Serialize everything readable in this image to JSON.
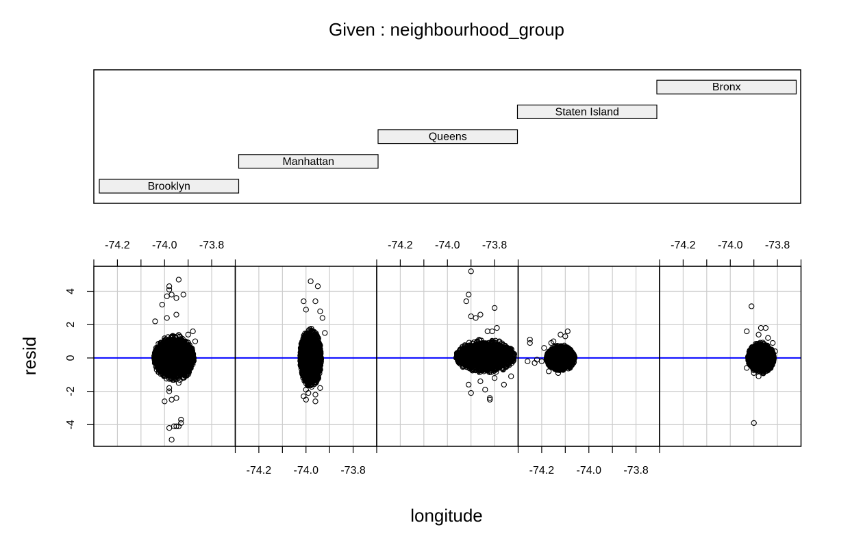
{
  "chart_data": {
    "type": "scatter",
    "title": "Given : neighbourhood_group",
    "xlabel": "longitude",
    "ylabel": "resid",
    "xlim": [
      -74.3,
      -73.7
    ],
    "ylim": [
      -5.3,
      5.5
    ],
    "x_ticks": [
      -74.2,
      -74.0,
      -73.8
    ],
    "y_ticks": [
      -4,
      -2,
      0,
      2,
      4
    ],
    "grid": true,
    "reference_line": {
      "y": 0,
      "color": "#0000ff"
    },
    "given_groups": [
      {
        "name": "Brooklyn"
      },
      {
        "name": "Manhattan"
      },
      {
        "name": "Queens"
      },
      {
        "name": "Staten Island"
      },
      {
        "name": "Bronx"
      }
    ],
    "panels": [
      {
        "group": "Brooklyn",
        "cloud": {
          "x_range": [
            -74.03,
            -73.86
          ],
          "y_range": [
            -1.3,
            1.6
          ],
          "x_center": -73.96,
          "y_center": 0
        },
        "points": [
          [
            -74.04,
            2.2
          ],
          [
            -74.01,
            3.2
          ],
          [
            -73.99,
            3.7
          ],
          [
            -73.98,
            4.3
          ],
          [
            -73.98,
            4.1
          ],
          [
            -73.97,
            3.8
          ],
          [
            -73.95,
            3.6
          ],
          [
            -73.94,
            4.7
          ],
          [
            -73.92,
            3.8
          ],
          [
            -73.95,
            2.6
          ],
          [
            -73.88,
            1.6
          ],
          [
            -73.9,
            1.4
          ],
          [
            -73.87,
            1.0
          ],
          [
            -73.99,
            2.4
          ],
          [
            -74.0,
            -2.6
          ],
          [
            -73.98,
            -1.8
          ],
          [
            -73.98,
            -2.0
          ],
          [
            -73.95,
            -2.4
          ],
          [
            -73.94,
            -1.5
          ],
          [
            -73.97,
            -2.5
          ],
          [
            -73.98,
            -4.2
          ],
          [
            -73.96,
            -4.1
          ],
          [
            -73.94,
            -4.1
          ],
          [
            -73.93,
            -3.7
          ],
          [
            -73.93,
            -3.9
          ],
          [
            -73.97,
            -4.9
          ],
          [
            -73.95,
            -4.1
          ]
        ]
      },
      {
        "group": "Manhattan",
        "cloud": {
          "x_range": [
            -74.02,
            -73.93
          ],
          "y_range": [
            -1.6,
            2.2
          ],
          "x_center": -73.98,
          "y_center": 0
        },
        "points": [
          [
            -74.01,
            3.4
          ],
          [
            -74.0,
            2.9
          ],
          [
            -73.98,
            4.6
          ],
          [
            -73.96,
            3.4
          ],
          [
            -73.95,
            4.3
          ],
          [
            -73.94,
            2.8
          ],
          [
            -73.93,
            2.4
          ],
          [
            -73.92,
            1.5
          ],
          [
            -74.01,
            -2.3
          ],
          [
            -74.0,
            -2.5
          ],
          [
            -73.99,
            -2.1
          ],
          [
            -73.96,
            -2.2
          ],
          [
            -73.96,
            -2.6
          ],
          [
            -73.94,
            -1.8
          ],
          [
            -74.0,
            -1.9
          ]
        ]
      },
      {
        "group": "Queens",
        "cloud": {
          "x_range": [
            -73.96,
            -73.71
          ],
          "y_range": [
            -0.9,
            1.2
          ],
          "x_center": -73.84,
          "y_center": 0.1
        },
        "points": [
          [
            -73.9,
            5.2
          ],
          [
            -73.92,
            3.4
          ],
          [
            -73.91,
            3.8
          ],
          [
            -73.9,
            2.5
          ],
          [
            -73.88,
            2.4
          ],
          [
            -73.86,
            2.6
          ],
          [
            -73.83,
            1.6
          ],
          [
            -73.8,
            3.0
          ],
          [
            -73.79,
            1.8
          ],
          [
            -73.81,
            1.6
          ],
          [
            -73.78,
            1.0
          ],
          [
            -73.91,
            -1.6
          ],
          [
            -73.9,
            -2.1
          ],
          [
            -73.86,
            -1.4
          ],
          [
            -73.84,
            -1.9
          ],
          [
            -73.82,
            -2.4
          ],
          [
            -73.82,
            -2.5
          ],
          [
            -73.8,
            -1.2
          ],
          [
            -73.76,
            -1.6
          ],
          [
            -73.73,
            -1.1
          ]
        ]
      },
      {
        "group": "Staten Island",
        "cloud": {
          "x_range": [
            -74.18,
            -74.06
          ],
          "y_range": [
            -0.7,
            0.9
          ],
          "x_center": -74.12,
          "y_center": 0
        },
        "points": [
          [
            -74.25,
            1.1
          ],
          [
            -74.25,
            0.9
          ],
          [
            -74.26,
            -0.2
          ],
          [
            -74.23,
            -0.3
          ],
          [
            -74.22,
            -0.1
          ],
          [
            -74.2,
            -0.2
          ],
          [
            -74.19,
            0.6
          ],
          [
            -74.16,
            0.9
          ],
          [
            -74.15,
            1.0
          ],
          [
            -74.12,
            1.4
          ],
          [
            -74.09,
            1.6
          ],
          [
            -74.1,
            1.3
          ],
          [
            -74.17,
            -0.8
          ],
          [
            -74.13,
            -0.9
          ],
          [
            -74.11,
            -0.7
          ],
          [
            -74.08,
            -0.6
          ]
        ]
      },
      {
        "group": "Bronx",
        "cloud": {
          "x_range": [
            -73.93,
            -73.82
          ],
          "y_range": [
            -0.9,
            1.0
          ],
          "x_center": -73.87,
          "y_center": 0
        },
        "points": [
          [
            -73.91,
            3.1
          ],
          [
            -73.93,
            1.6
          ],
          [
            -73.87,
            1.8
          ],
          [
            -73.85,
            1.8
          ],
          [
            -73.88,
            1.4
          ],
          [
            -73.84,
            1.2
          ],
          [
            -73.82,
            0.9
          ],
          [
            -73.81,
            0.4
          ],
          [
            -73.93,
            -0.6
          ],
          [
            -73.9,
            -0.9
          ],
          [
            -73.88,
            -1.1
          ],
          [
            -73.86,
            -0.9
          ],
          [
            -73.84,
            -0.7
          ],
          [
            -73.9,
            -3.9
          ]
        ]
      }
    ]
  }
}
